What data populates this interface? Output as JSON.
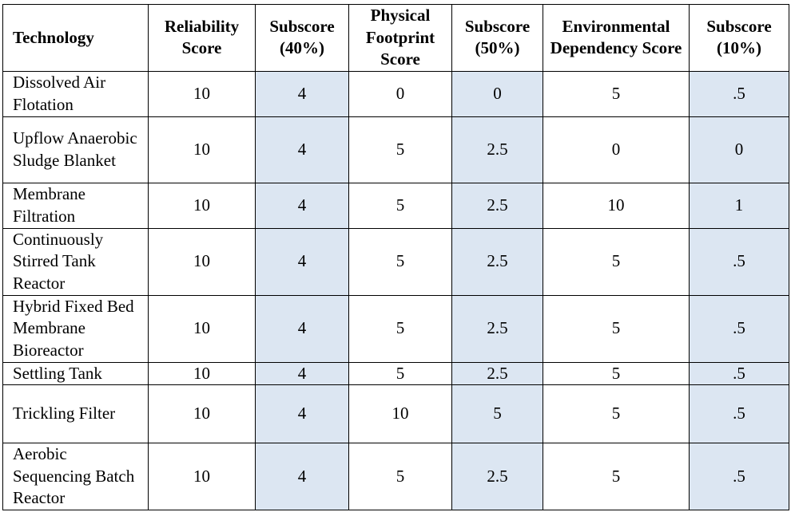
{
  "table": {
    "headers": [
      "Technology",
      "Reliability Score",
      "Subscore (40%)",
      "Physical Footprint Score",
      "Subscore (50%)",
      "Environmental Dependency Score",
      "Subscore (10%)"
    ],
    "rows": [
      [
        "Dissolved Air Flotation",
        "10",
        "4",
        "0",
        "0",
        "5",
        ".5"
      ],
      [
        "Upflow Anaerobic Sludge Blanket",
        "10",
        "4",
        "5",
        "2.5",
        "0",
        "0"
      ],
      [
        "Membrane Filtration",
        "10",
        "4",
        "5",
        "2.5",
        "10",
        "1"
      ],
      [
        "Continuously Stirred Tank Reactor",
        "10",
        "4",
        "5",
        "2.5",
        "5",
        ".5"
      ],
      [
        "Hybrid Fixed Bed Membrane Bioreactor",
        "10",
        "4",
        "5",
        "2.5",
        "5",
        ".5"
      ],
      [
        "Settling Tank",
        "10",
        "4",
        "5",
        "2.5",
        "5",
        ".5"
      ],
      [
        "Trickling Filter",
        "10",
        "4",
        "10",
        "5",
        "5",
        ".5"
      ],
      [
        "Aerobic Sequencing Batch Reactor",
        "10",
        "4",
        "5",
        "2.5",
        "5",
        ".5"
      ]
    ],
    "subscore_fill": "#dce6f2"
  }
}
